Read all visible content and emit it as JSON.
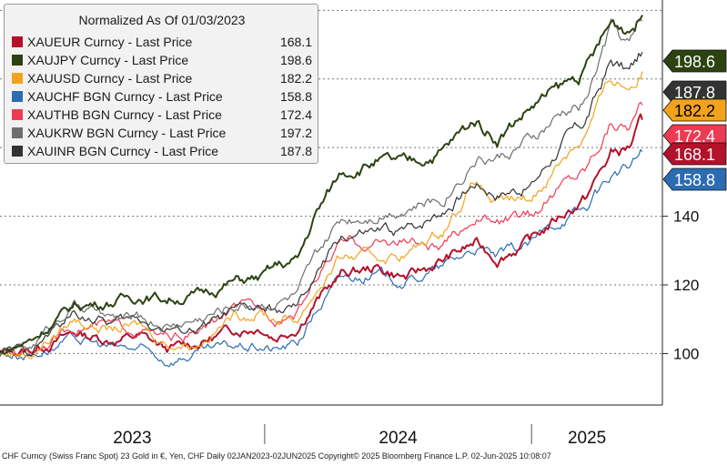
{
  "chart_data": {
    "type": "line",
    "title": "",
    "xlabel": "",
    "ylabel": "",
    "x_start": "2023-01-03",
    "x_end": "2025-06-02",
    "ylim": [
      85,
      203
    ],
    "y_ticks": [
      100,
      120,
      140
    ],
    "x_labels": [
      "2023",
      "2024",
      "2025"
    ],
    "grid": true,
    "legend_title": "Normalized As Of 01/03/2023",
    "legend_position": "top-left",
    "series": [
      {
        "name": "XAUEUR Curncy - Last Price",
        "color": "#b3122b",
        "last_value": "168.1",
        "points": [
          [
            "2023-01-03",
            100
          ],
          [
            "2023-02-15",
            101
          ],
          [
            "2023-04-15",
            106
          ],
          [
            "2023-06-01",
            104
          ],
          [
            "2023-07-15",
            105
          ],
          [
            "2023-08-20",
            101
          ],
          [
            "2023-10-01",
            103
          ],
          [
            "2023-11-20",
            107
          ],
          [
            "2023-12-28",
            108
          ],
          [
            "2024-01-15",
            105
          ],
          [
            "2024-02-15",
            108
          ],
          [
            "2024-03-10",
            115
          ],
          [
            "2024-04-15",
            123
          ],
          [
            "2024-06-01",
            125
          ],
          [
            "2024-07-15",
            122
          ],
          [
            "2024-09-01",
            127
          ],
          [
            "2024-10-15",
            132
          ],
          [
            "2024-11-15",
            128
          ],
          [
            "2025-01-01",
            133
          ],
          [
            "2025-02-15",
            141
          ],
          [
            "2025-03-15",
            145
          ],
          [
            "2025-04-20",
            158
          ],
          [
            "2025-05-15",
            160
          ],
          [
            "2025-06-02",
            168.1
          ]
        ]
      },
      {
        "name": "XAUJPY Curncy - Last Price",
        "color": "#2c4211",
        "last_value": "198.6",
        "points": [
          [
            "2023-01-03",
            100
          ],
          [
            "2023-02-15",
            104
          ],
          [
            "2023-04-15",
            114
          ],
          [
            "2023-06-01",
            115
          ],
          [
            "2023-07-15",
            117
          ],
          [
            "2023-08-20",
            116
          ],
          [
            "2023-10-01",
            117
          ],
          [
            "2023-11-20",
            121
          ],
          [
            "2023-12-28",
            122
          ],
          [
            "2024-01-15",
            125
          ],
          [
            "2024-02-15",
            127
          ],
          [
            "2024-03-10",
            140
          ],
          [
            "2024-04-15",
            153
          ],
          [
            "2024-06-01",
            156
          ],
          [
            "2024-07-15",
            155
          ],
          [
            "2024-09-01",
            159
          ],
          [
            "2024-10-15",
            168
          ],
          [
            "2024-11-15",
            163
          ],
          [
            "2025-01-01",
            172
          ],
          [
            "2025-02-15",
            178
          ],
          [
            "2025-03-15",
            182
          ],
          [
            "2025-04-20",
            196
          ],
          [
            "2025-05-15",
            195
          ],
          [
            "2025-06-02",
            198.6
          ]
        ]
      },
      {
        "name": "XAUUSD Curncy - Last Price",
        "color": "#f2a31b",
        "last_value": "182.2",
        "points": [
          [
            "2023-01-03",
            100
          ],
          [
            "2023-02-15",
            100
          ],
          [
            "2023-04-15",
            110
          ],
          [
            "2023-06-01",
            107
          ],
          [
            "2023-07-15",
            108
          ],
          [
            "2023-08-20",
            103
          ],
          [
            "2023-10-01",
            103
          ],
          [
            "2023-11-20",
            111
          ],
          [
            "2023-12-28",
            112
          ],
          [
            "2024-01-15",
            110
          ],
          [
            "2024-02-15",
            110
          ],
          [
            "2024-03-10",
            118
          ],
          [
            "2024-04-15",
            128
          ],
          [
            "2024-06-01",
            128
          ],
          [
            "2024-07-15",
            129
          ],
          [
            "2024-09-01",
            136
          ],
          [
            "2024-10-15",
            150
          ],
          [
            "2024-11-15",
            143
          ],
          [
            "2025-01-01",
            145
          ],
          [
            "2025-02-15",
            158
          ],
          [
            "2025-03-15",
            164
          ],
          [
            "2025-04-20",
            180
          ],
          [
            "2025-05-15",
            178
          ],
          [
            "2025-06-02",
            182.2
          ]
        ]
      },
      {
        "name": "XAUCHF BGN Curncy - Last Price",
        "color": "#2b6cb3",
        "last_value": "158.8",
        "points": [
          [
            "2023-01-03",
            100
          ],
          [
            "2023-02-15",
            100
          ],
          [
            "2023-04-15",
            104
          ],
          [
            "2023-06-01",
            102
          ],
          [
            "2023-07-15",
            101
          ],
          [
            "2023-08-20",
            98
          ],
          [
            "2023-10-01",
            100
          ],
          [
            "2023-11-20",
            102
          ],
          [
            "2023-12-28",
            102
          ],
          [
            "2024-01-15",
            101
          ],
          [
            "2024-02-15",
            103
          ],
          [
            "2024-03-10",
            112
          ],
          [
            "2024-04-15",
            122
          ],
          [
            "2024-06-01",
            123
          ],
          [
            "2024-07-15",
            121
          ],
          [
            "2024-09-01",
            125
          ],
          [
            "2024-10-15",
            131
          ],
          [
            "2024-11-15",
            128
          ],
          [
            "2025-01-01",
            132
          ],
          [
            "2025-02-15",
            140
          ],
          [
            "2025-03-15",
            142
          ],
          [
            "2025-04-20",
            152
          ],
          [
            "2025-05-15",
            154
          ],
          [
            "2025-06-02",
            158.8
          ]
        ]
      },
      {
        "name": "XAUTHB BGN Curncy - Last Price",
        "color": "#ee3b54",
        "last_value": "172.4",
        "points": [
          [
            "2023-01-03",
            100
          ],
          [
            "2023-02-15",
            101
          ],
          [
            "2023-04-15",
            108
          ],
          [
            "2023-06-01",
            108
          ],
          [
            "2023-07-15",
            107
          ],
          [
            "2023-08-20",
            104
          ],
          [
            "2023-10-01",
            106
          ],
          [
            "2023-11-20",
            113
          ],
          [
            "2023-12-28",
            113
          ],
          [
            "2024-01-15",
            111
          ],
          [
            "2024-02-15",
            112
          ],
          [
            "2024-03-10",
            122
          ],
          [
            "2024-04-15",
            132
          ],
          [
            "2024-06-01",
            132
          ],
          [
            "2024-07-15",
            133
          ],
          [
            "2024-09-01",
            130
          ],
          [
            "2024-10-15",
            140
          ],
          [
            "2024-11-15",
            138
          ],
          [
            "2025-01-01",
            140
          ],
          [
            "2025-02-15",
            150
          ],
          [
            "2025-03-15",
            154
          ],
          [
            "2025-04-20",
            168
          ],
          [
            "2025-05-15",
            167
          ],
          [
            "2025-06-02",
            172.4
          ]
        ]
      },
      {
        "name": "XAUKRW BGN Curncy - Last Price",
        "color": "#6e6e6e",
        "last_value": "197.2",
        "points": [
          [
            "2023-01-03",
            100
          ],
          [
            "2023-02-15",
            102
          ],
          [
            "2023-04-15",
            115
          ],
          [
            "2023-06-01",
            110
          ],
          [
            "2023-07-15",
            110
          ],
          [
            "2023-08-20",
            108
          ],
          [
            "2023-10-01",
            110
          ],
          [
            "2023-11-20",
            114
          ],
          [
            "2023-12-28",
            115
          ],
          [
            "2024-01-15",
            115
          ],
          [
            "2024-02-15",
            117
          ],
          [
            "2024-03-10",
            127
          ],
          [
            "2024-04-15",
            139
          ],
          [
            "2024-06-01",
            141
          ],
          [
            "2024-07-15",
            143
          ],
          [
            "2024-09-01",
            145
          ],
          [
            "2024-10-15",
            157
          ],
          [
            "2024-11-15",
            157
          ],
          [
            "2025-01-01",
            162
          ],
          [
            "2025-02-15",
            170
          ],
          [
            "2025-03-15",
            173
          ],
          [
            "2025-04-20",
            195
          ],
          [
            "2025-05-15",
            190
          ],
          [
            "2025-06-02",
            197.2
          ]
        ]
      },
      {
        "name": "XAUINR BGN Curncy - Last Price",
        "color": "#333333",
        "last_value": "187.8",
        "points": [
          [
            "2023-01-03",
            100
          ],
          [
            "2023-02-15",
            101
          ],
          [
            "2023-04-15",
            112
          ],
          [
            "2023-06-01",
            109
          ],
          [
            "2023-07-15",
            110
          ],
          [
            "2023-08-20",
            107
          ],
          [
            "2023-10-01",
            107
          ],
          [
            "2023-11-20",
            112
          ],
          [
            "2023-12-28",
            113
          ],
          [
            "2024-01-15",
            112
          ],
          [
            "2024-02-15",
            113
          ],
          [
            "2024-03-10",
            122
          ],
          [
            "2024-04-15",
            134
          ],
          [
            "2024-06-01",
            135
          ],
          [
            "2024-07-15",
            136
          ],
          [
            "2024-09-01",
            142
          ],
          [
            "2024-10-15",
            150
          ],
          [
            "2024-11-15",
            147
          ],
          [
            "2025-01-01",
            149
          ],
          [
            "2025-02-15",
            162
          ],
          [
            "2025-03-15",
            167
          ],
          [
            "2025-04-20",
            185
          ],
          [
            "2025-05-15",
            182
          ],
          [
            "2025-06-02",
            187.8
          ]
        ]
      }
    ],
    "value_tags": [
      {
        "label": "198.6",
        "series": 1,
        "bg": "#2c4211",
        "fg": "#ffffff"
      },
      {
        "label": "187.8",
        "series": 6,
        "bg": "#333333",
        "fg": "#ffffff"
      },
      {
        "label": "172.4",
        "series": 4,
        "bg": "#ee3b54",
        "fg": "#ffffff"
      },
      {
        "label": "182.2",
        "series": 2,
        "bg": "#f2a31b",
        "fg": "#000000"
      },
      {
        "label": "168.1",
        "series": 0,
        "bg": "#b3122b",
        "fg": "#ffffff"
      },
      {
        "label": "158.8",
        "series": 3,
        "bg": "#2b6cb3",
        "fg": "#ffffff"
      }
    ]
  },
  "footer": "CHF Curncy (Swiss Franc Spot) 23 Gold in €, Yen, CHF  Daily 02JAN2023-02JUN2025  Copyright© 2025 Bloomberg Finance L.P.   02-Jun-2025 10:08:07"
}
